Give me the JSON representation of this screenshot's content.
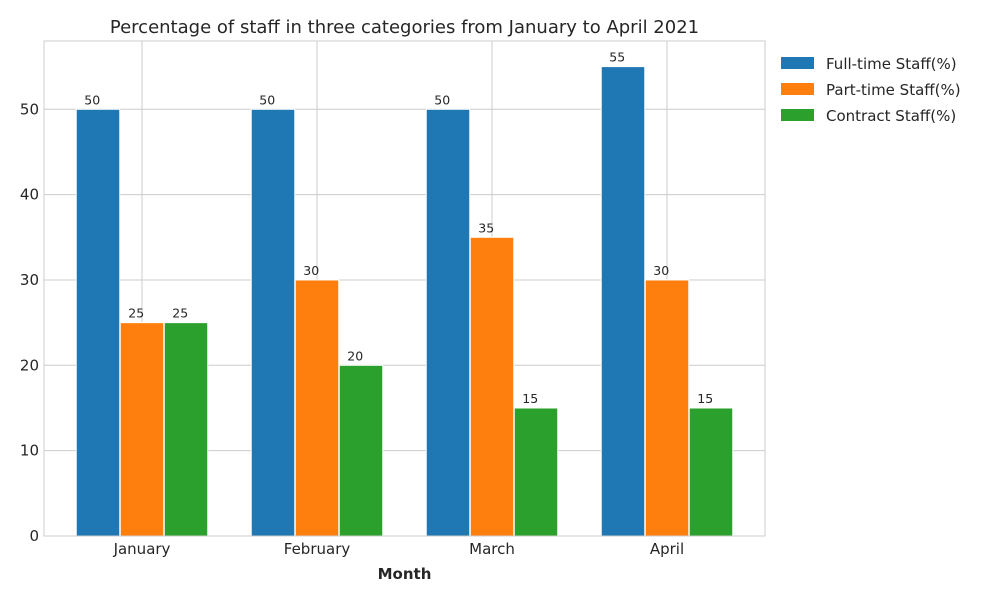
{
  "chart_data": {
    "type": "bar",
    "title": "Percentage of staff in three categories from January to April 2021",
    "xlabel": "Month",
    "ylabel": "",
    "categories": [
      "January",
      "February",
      "March",
      "April"
    ],
    "series": [
      {
        "name": "Full-time Staff(%)",
        "color": "#1f77b4",
        "values": [
          50,
          50,
          50,
          55
        ]
      },
      {
        "name": "Part-time Staff(%)",
        "color": "#ff7f0e",
        "values": [
          25,
          30,
          35,
          30
        ]
      },
      {
        "name": "Contract Staff(%)",
        "color": "#2ca02c",
        "values": [
          25,
          20,
          15,
          15
        ]
      }
    ],
    "ylim": [
      0,
      58
    ],
    "yticks": [
      0,
      10,
      20,
      30,
      40,
      50
    ],
    "grid": true,
    "legend_position": "outside-top-right"
  }
}
